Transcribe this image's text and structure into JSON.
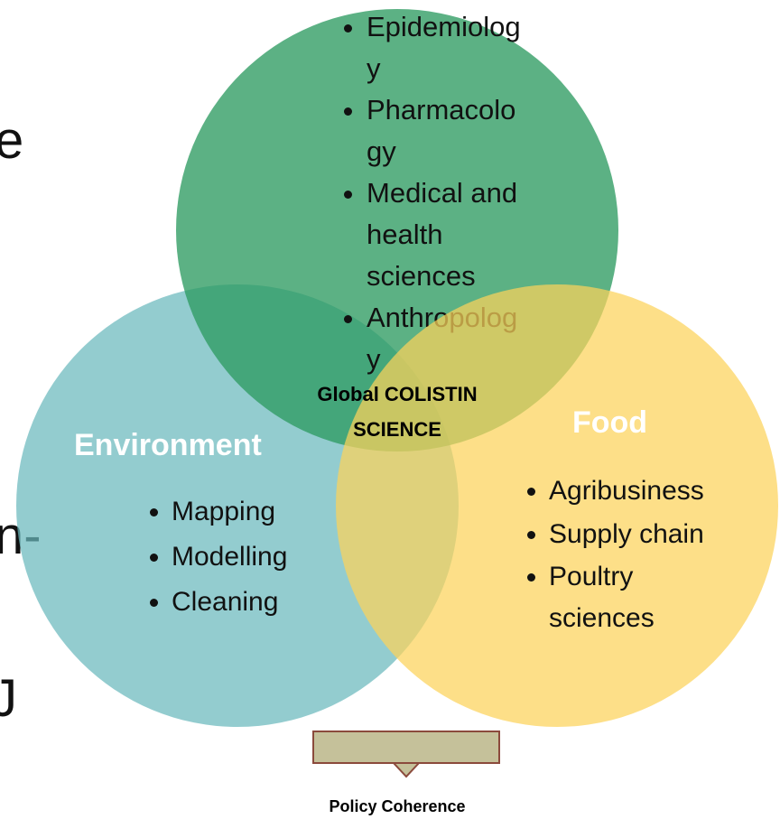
{
  "left_fragments": [
    "e",
    "n-",
    "J"
  ],
  "science": {
    "items": [
      "Epidemiology",
      "Pharmacology",
      "Medical and health sciences",
      "Anthropology"
    ]
  },
  "environment": {
    "title": "Environment",
    "items": [
      "Mapping",
      "Modelling",
      "Cleaning"
    ]
  },
  "food": {
    "title": "Food",
    "items": [
      "Agribusiness",
      "Supply chain",
      "Poultry sciences"
    ]
  },
  "center": {
    "line1": "Global COLISTIN",
    "line2": "SCIENCE"
  },
  "footer": "Policy Coherence"
}
